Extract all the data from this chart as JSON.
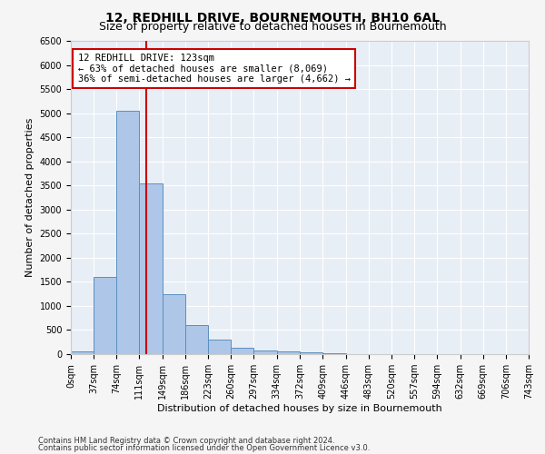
{
  "title": "12, REDHILL DRIVE, BOURNEMOUTH, BH10 6AL",
  "subtitle": "Size of property relative to detached houses in Bournemouth",
  "xlabel": "Distribution of detached houses by size in Bournemouth",
  "ylabel": "Number of detached properties",
  "footnote1": "Contains HM Land Registry data © Crown copyright and database right 2024.",
  "footnote2": "Contains public sector information licensed under the Open Government Licence v3.0.",
  "bar_edges": [
    0,
    37,
    74,
    111,
    149,
    186,
    223,
    260,
    297,
    334,
    372,
    409,
    446,
    483,
    520,
    557,
    594,
    632,
    669,
    706,
    743
  ],
  "bar_values": [
    50,
    1600,
    5050,
    3550,
    1250,
    600,
    300,
    130,
    80,
    50,
    30,
    10,
    5,
    3,
    2,
    1,
    1,
    1,
    1,
    1
  ],
  "bar_color": "#aec6e8",
  "bar_edge_color": "#5a8fc0",
  "bg_color": "#e8eef5",
  "grid_color": "#ffffff",
  "red_line_x": 123,
  "annotation_title": "12 REDHILL DRIVE: 123sqm",
  "annotation_line1": "← 63% of detached houses are smaller (8,069)",
  "annotation_line2": "36% of semi-detached houses are larger (4,662) →",
  "annotation_box_color": "#ffffff",
  "annotation_border_color": "#cc0000",
  "red_line_color": "#cc0000",
  "ylim": [
    0,
    6500
  ],
  "yticks": [
    0,
    500,
    1000,
    1500,
    2000,
    2500,
    3000,
    3500,
    4000,
    4500,
    5000,
    5500,
    6000,
    6500
  ],
  "title_fontsize": 10,
  "subtitle_fontsize": 9,
  "axis_label_fontsize": 8,
  "tick_fontsize": 7,
  "annotation_fontsize": 7.5,
  "fig_facecolor": "#f5f5f5"
}
